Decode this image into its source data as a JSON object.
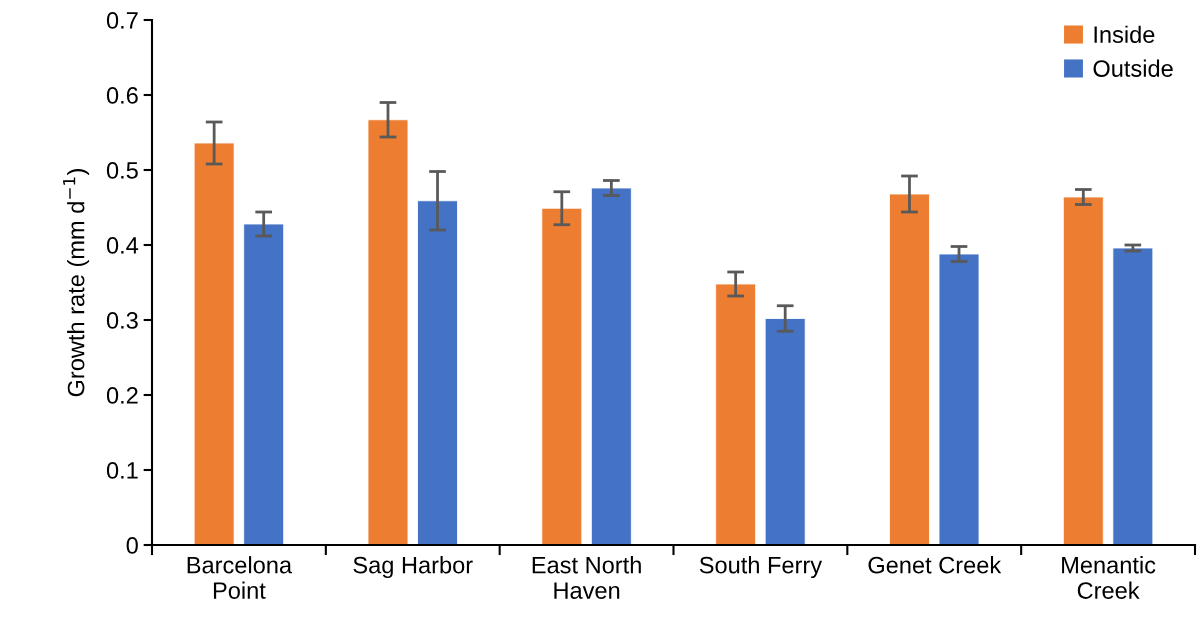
{
  "chart_data": {
    "type": "bar",
    "ylabel": "Growth rate (mm d$^{−1}$)",
    "categories": [
      "Barcelona\nPoint",
      "Sag Harbor",
      "East North\nHaven",
      "South Ferry",
      "Genet Creek",
      "Menantic\nCreek"
    ],
    "series": [
      {
        "name": "Inside",
        "color": "#ed7d31",
        "values": [
          0.536,
          0.567,
          0.449,
          0.348,
          0.468,
          0.464
        ],
        "errors": [
          0.028,
          0.023,
          0.022,
          0.016,
          0.024,
          0.01
        ]
      },
      {
        "name": "Outside",
        "color": "#4472c4",
        "values": [
          0.428,
          0.459,
          0.476,
          0.302,
          0.388,
          0.396
        ],
        "errors": [
          0.016,
          0.039,
          0.01,
          0.017,
          0.01,
          0.004
        ]
      }
    ],
    "ylim": [
      0,
      0.7
    ],
    "yticks": [
      0,
      0.1,
      0.2,
      0.3,
      0.4,
      0.5,
      0.6,
      0.7
    ],
    "grid": false,
    "legend": "top right"
  }
}
